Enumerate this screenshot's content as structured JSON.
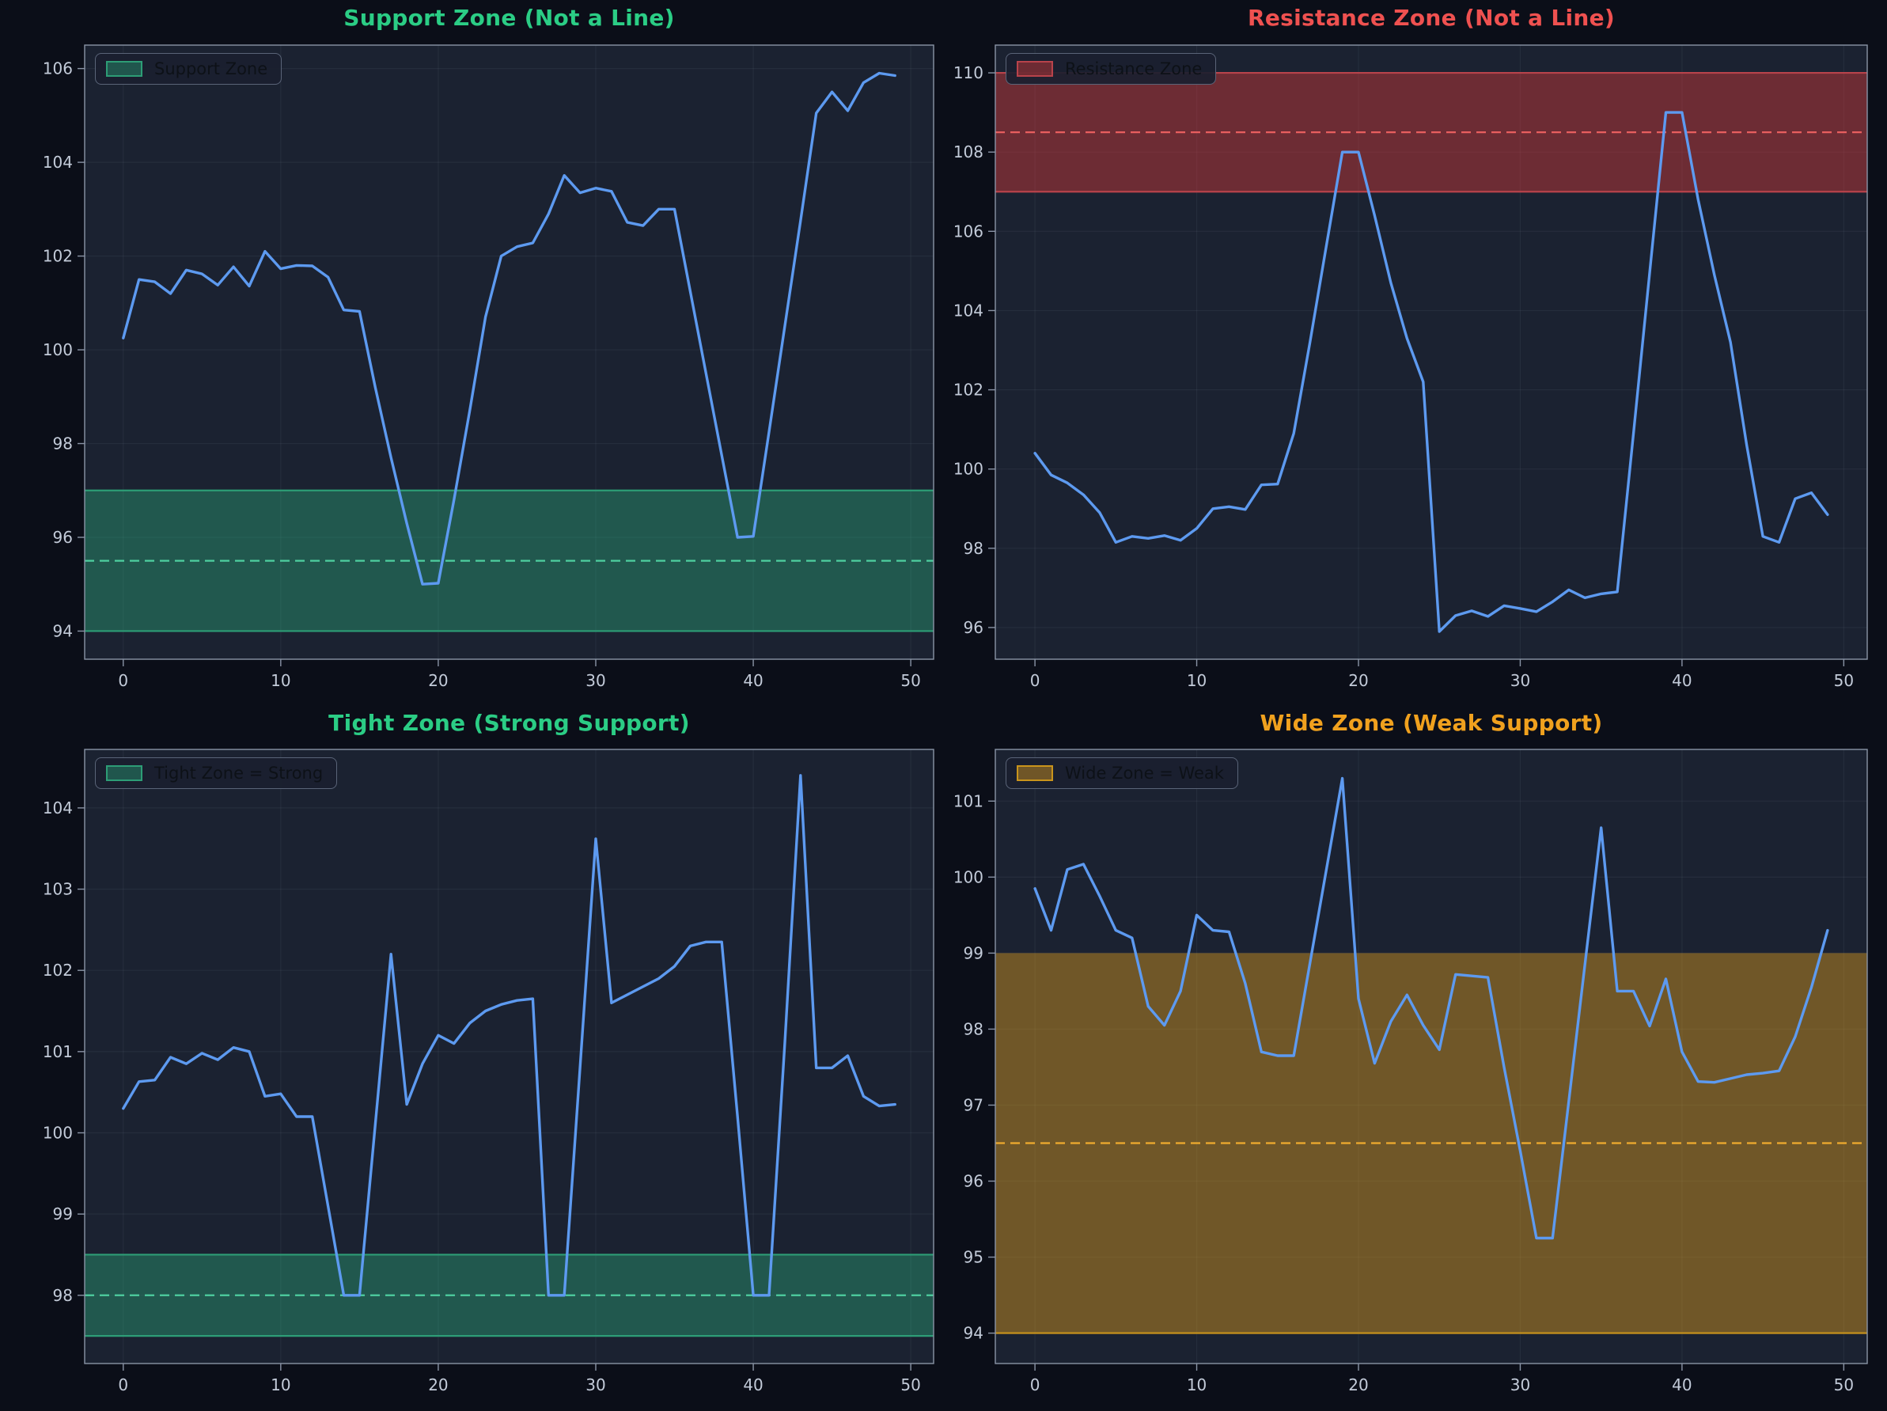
{
  "page": {
    "figure_background": "#0b0e18",
    "plot_background": "#1b2231",
    "grid_color": "rgba(205,215,235,0.06)",
    "spine_color": "#8a94a6",
    "tick_text_color": "#c3cbd9",
    "line_color": "#5d9af0"
  },
  "chart_data": [
    {
      "type": "line",
      "title": "Support Zone (Not a Line)",
      "title_color": "#2bcd85",
      "legend_label": "Support Zone",
      "legend_position": "upper-left",
      "grid": true,
      "xlabel": "",
      "ylabel": "",
      "xlim": [
        -2.45,
        51.45
      ],
      "ylim": [
        93.4,
        106.5
      ],
      "xticks": [
        0,
        10,
        20,
        30,
        40,
        50
      ],
      "yticks": [
        94,
        96,
        98,
        100,
        102,
        104,
        106
      ],
      "x_start": 0,
      "x_step": 1,
      "zone": {
        "low": 94,
        "high": 97,
        "mid_dashed": 95.5,
        "fill": "rgba(45,200,140,0.33)",
        "edge": "#2d9d76",
        "dash_color": "#4ecfa0",
        "edge_lines": [
          94,
          97
        ]
      },
      "values": [
        100.25,
        101.5,
        101.45,
        101.2,
        101.7,
        101.62,
        101.38,
        101.77,
        101.36,
        102.1,
        101.73,
        101.8,
        101.79,
        101.55,
        100.85,
        100.82,
        99.2,
        97.7,
        96.3,
        95.0,
        95.02,
        96.8,
        98.7,
        100.7,
        102.0,
        102.2,
        102.28,
        102.9,
        103.72,
        103.35,
        103.45,
        103.38,
        102.72,
        102.65,
        103.0,
        103.0,
        101.25,
        99.5,
        97.75,
        96.0,
        96.02,
        98.25,
        100.5,
        102.75,
        105.05,
        105.5,
        105.1,
        105.7,
        105.9,
        105.85
      ]
    },
    {
      "type": "line",
      "title": "Resistance Zone (Not a Line)",
      "title_color": "#ef5150",
      "legend_label": "Resistance Zone",
      "legend_position": "upper-left",
      "grid": true,
      "xlabel": "",
      "ylabel": "",
      "xlim": [
        -2.45,
        51.45
      ],
      "ylim": [
        95.2,
        110.7
      ],
      "xticks": [
        0,
        10,
        20,
        30,
        40,
        50
      ],
      "yticks": [
        96,
        98,
        100,
        102,
        104,
        106,
        108,
        110
      ],
      "x_start": 0,
      "x_step": 1,
      "zone": {
        "low": 107,
        "high": 110,
        "mid_dashed": 108.5,
        "fill": "rgba(211,58,58,0.45)",
        "edge": "#b8434b",
        "dash_color": "#e85f5f",
        "edge_lines": [
          107,
          110
        ]
      },
      "values": [
        100.4,
        99.85,
        99.65,
        99.35,
        98.9,
        98.15,
        98.3,
        98.25,
        98.32,
        98.2,
        98.5,
        99.0,
        99.05,
        98.98,
        99.6,
        99.62,
        100.9,
        103.2,
        105.6,
        108.0,
        108.0,
        106.4,
        104.7,
        103.3,
        102.2,
        95.9,
        96.3,
        96.42,
        96.28,
        96.55,
        96.48,
        96.4,
        96.65,
        96.95,
        96.75,
        96.85,
        96.9,
        100.9,
        104.95,
        109.0,
        109.0,
        106.8,
        104.9,
        103.2,
        100.6,
        98.3,
        98.15,
        99.25,
        99.4,
        98.85
      ]
    },
    {
      "type": "line",
      "title": "Tight Zone (Strong Support)",
      "title_color": "#2bcd85",
      "legend_label": "Tight Zone = Strong",
      "legend_position": "upper-left",
      "grid": true,
      "xlabel": "",
      "ylabel": "",
      "xlim": [
        -2.45,
        51.45
      ],
      "ylim": [
        97.16,
        104.72
      ],
      "xticks": [
        0,
        10,
        20,
        30,
        40,
        50
      ],
      "yticks": [
        98,
        99,
        100,
        101,
        102,
        103,
        104
      ],
      "x_start": 0,
      "x_step": 1,
      "zone": {
        "low": 97.5,
        "high": 98.5,
        "mid_dashed": 98.0,
        "fill": "rgba(45,200,140,0.33)",
        "edge": "#2d9d76",
        "dash_color": "#4ecfa0",
        "edge_lines": [
          97.5,
          98.5
        ]
      },
      "values": [
        100.3,
        100.63,
        100.65,
        100.93,
        100.85,
        100.98,
        100.9,
        101.05,
        101.0,
        100.45,
        100.48,
        100.2,
        100.2,
        99.1,
        98.0,
        98.0,
        100.1,
        102.2,
        100.35,
        100.85,
        101.2,
        101.1,
        101.35,
        101.5,
        101.58,
        101.63,
        101.65,
        98.0,
        98.0,
        100.8,
        103.62,
        101.6,
        101.7,
        101.8,
        101.9,
        102.05,
        102.3,
        102.35,
        102.35,
        100.2,
        98.0,
        98.0,
        101.1,
        104.4,
        100.8,
        100.8,
        100.95,
        100.45,
        100.33,
        100.35
      ]
    },
    {
      "type": "line",
      "title": "Wide Zone (Weak Support)",
      "title_color": "#f0a11e",
      "legend_label": "Wide Zone = Weak",
      "legend_position": "upper-left",
      "grid": true,
      "xlabel": "",
      "ylabel": "",
      "xlim": [
        -2.45,
        51.45
      ],
      "ylim": [
        93.6,
        101.68
      ],
      "xticks": [
        0,
        10,
        20,
        30,
        40,
        50
      ],
      "yticks": [
        94,
        95,
        96,
        97,
        98,
        99,
        100,
        101
      ],
      "x_start": 0,
      "x_step": 1,
      "zone": {
        "low": 94,
        "high": 99,
        "mid_dashed": 96.5,
        "fill": "rgba(232,162,28,0.42)",
        "edge": "#c9941c",
        "dash_color": "#efab2e",
        "edge_lines": [
          94
        ]
      },
      "values": [
        99.85,
        99.3,
        100.1,
        100.17,
        99.75,
        99.3,
        99.2,
        98.3,
        98.05,
        98.5,
        99.5,
        99.3,
        99.28,
        98.6,
        97.7,
        97.65,
        97.65,
        98.87,
        100.08,
        101.3,
        98.4,
        97.55,
        98.1,
        98.45,
        98.05,
        97.73,
        98.72,
        98.7,
        98.68,
        97.5,
        96.4,
        95.25,
        95.25,
        97.05,
        98.85,
        100.65,
        98.5,
        98.5,
        98.04,
        98.66,
        97.7,
        97.31,
        97.3,
        97.35,
        97.4,
        97.42,
        97.45,
        97.9,
        98.55,
        99.3
      ]
    }
  ]
}
